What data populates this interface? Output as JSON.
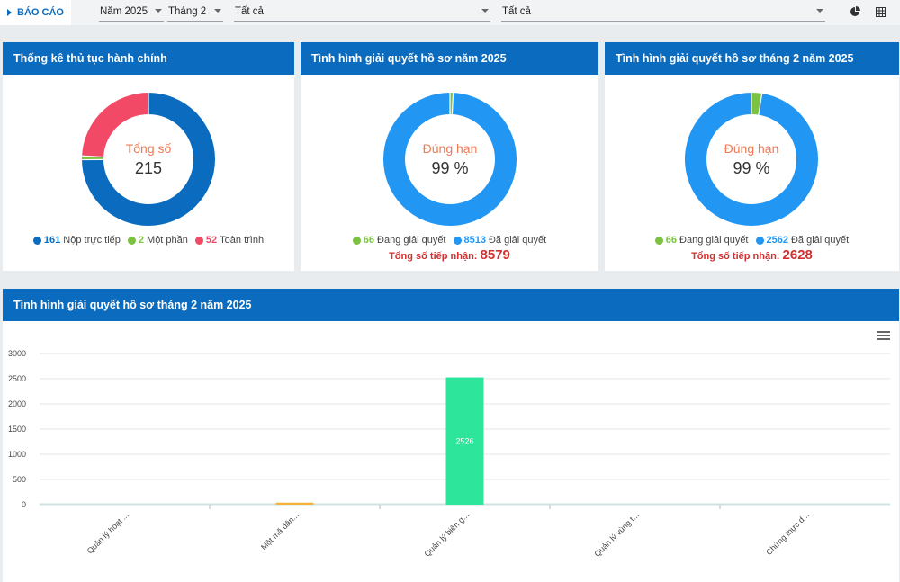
{
  "topbar": {
    "report_tab": "BÁO CÁO",
    "year": "Năm 2025",
    "month": "Tháng 2",
    "filter_a": "Tất cả",
    "filter_b": "Tất cả",
    "icons": [
      "pie-chart-icon",
      "table-grid-icon"
    ]
  },
  "panels": {
    "p1": {
      "title": "Thống kê thủ tục hành chính",
      "center_label": "Tổng số",
      "center_value": "215",
      "legend": [
        {
          "value": "161",
          "label": "Nộp trực tiếp",
          "color": "#0b6cbf"
        },
        {
          "value": "2",
          "label": "Một phần",
          "color": "#7cc242"
        },
        {
          "value": "52",
          "label": "Toàn trình",
          "color": "#f24966"
        }
      ]
    },
    "p2": {
      "title": "Tình hình giải quyết hồ sơ năm 2025",
      "center_label": "Đúng hạn",
      "center_value": "99 %",
      "legend": [
        {
          "value": "66",
          "label": "Đang giải quyết",
          "color": "#7cc242"
        },
        {
          "value": "8513",
          "label": "Đã giải quyết",
          "color": "#2196f3"
        }
      ],
      "total_label": "Tổng số tiếp nhận:",
      "total_value": "8579"
    },
    "p3": {
      "title": "Tình hình giải quyết hồ sơ tháng 2 năm 2025",
      "center_label": "Đúng hạn",
      "center_value": "99 %",
      "legend": [
        {
          "value": "66",
          "label": "Đang giải quyết",
          "color": "#7cc242"
        },
        {
          "value": "2562",
          "label": "Đã giải quyết",
          "color": "#2196f3"
        }
      ],
      "total_label": "Tổng số tiếp nhận:",
      "total_value": "2628"
    },
    "p4": {
      "title": "Tình hình giải quyết hồ sơ tháng 2 năm 2025"
    }
  },
  "chart_data": [
    {
      "type": "pie",
      "title": "Thống kê thủ tục hành chính",
      "categories": [
        "Nộp trực tiếp",
        "Một phần",
        "Toàn trình"
      ],
      "values": [
        161,
        2,
        52
      ],
      "colors": [
        "#0b6cbf",
        "#7cc242",
        "#f24966"
      ]
    },
    {
      "type": "pie",
      "title": "Tình hình giải quyết hồ sơ năm 2025",
      "categories": [
        "Đang giải quyết",
        "Đã giải quyết"
      ],
      "values": [
        66,
        8513
      ],
      "colors": [
        "#7cc242",
        "#2196f3"
      ]
    },
    {
      "type": "pie",
      "title": "Tình hình giải quyết hồ sơ tháng 2 năm 2025",
      "categories": [
        "Đang giải quyết",
        "Đã giải quyết"
      ],
      "values": [
        66,
        2562
      ],
      "colors": [
        "#7cc242",
        "#2196f3"
      ]
    },
    {
      "type": "bar",
      "title": "Tình hình giải quyết hồ sơ tháng 2 năm 2025",
      "ylim": [
        0,
        3000
      ],
      "yticks": [
        0,
        500,
        1000,
        1500,
        2000,
        2500,
        3000
      ],
      "categories": [
        "Quản lý hoạt ...",
        "Một mã dân...",
        "Quản lý biên g...",
        "Quản lý vùng t...",
        "Chứng thực d..."
      ],
      "grid": true,
      "bars": [
        {
          "category_index": 1,
          "value": 40,
          "color": "#f7b23b",
          "label": ""
        },
        {
          "category_index": 2,
          "value": 2526,
          "color": "#2de59b",
          "label": "2526"
        }
      ],
      "baseline_color": "#cfe3e3"
    }
  ]
}
